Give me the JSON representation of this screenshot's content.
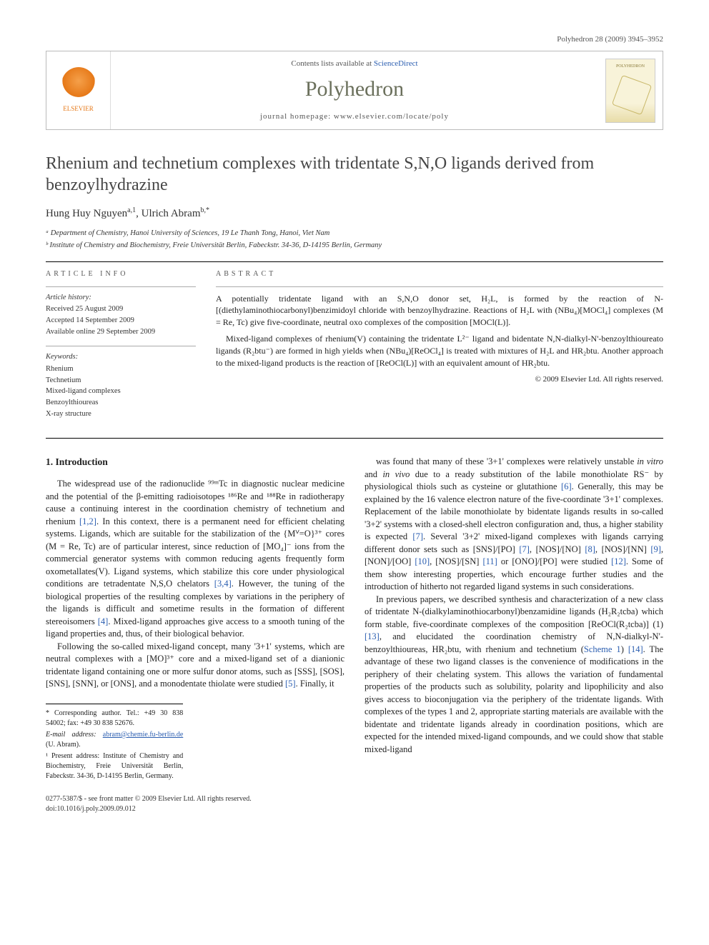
{
  "journal_ref": "Polyhedron 28 (2009) 3945–3952",
  "header": {
    "contents_prefix": "Contents lists available at ",
    "contents_link": "ScienceDirect",
    "journal_name": "Polyhedron",
    "homepage_prefix": "journal homepage: ",
    "homepage_url": "www.elsevier.com/locate/poly",
    "publisher_label": "ELSEVIER",
    "cover_label": "POLYHEDRON"
  },
  "title": "Rhenium and technetium complexes with tridentate S,N,O ligands derived from benzoylhydrazine",
  "authors_html": "Hung Huy Nguyen<sup>a,1</sup>, Ulrich Abram<sup>b,*</sup>",
  "affiliations": [
    "ᵃ Department of Chemistry, Hanoi University of Sciences, 19 Le Thanh Tong, Hanoi, Viet Nam",
    "ᵇ Institute of Chemistry and Biochemistry, Freie Universität Berlin, Fabeckstr. 34-36, D-14195 Berlin, Germany"
  ],
  "article_info": {
    "label": "ARTICLE INFO",
    "history_hdr": "Article history:",
    "history": [
      "Received 25 August 2009",
      "Accepted 14 September 2009",
      "Available online 29 September 2009"
    ],
    "keywords_hdr": "Keywords:",
    "keywords": [
      "Rhenium",
      "Technetium",
      "Mixed-ligand complexes",
      "Benzoylthioureas",
      "X-ray structure"
    ]
  },
  "abstract": {
    "label": "ABSTRACT",
    "p1": "A potentially tridentate ligand with an S,N,O donor set, H₂L, is formed by the reaction of N-[(diethylaminothiocarbonyl)benzimidoyl chloride with benzoylhydrazine. Reactions of H₂L with (NBu₄)[MOCl₄] complexes (M = Re, Tc) give five-coordinate, neutral oxo complexes of the composition [MOCl(L)].",
    "p2": "Mixed-ligand complexes of rhenium(V) containing the tridentate L²⁻ ligand and bidentate N,N-dialkyl-N'-benzoylthioureato ligands (R₂btu⁻) are formed in high yields when (NBu₄)[ReOCl₄] is treated with mixtures of H₂L and HR₂btu. Another approach to the mixed-ligand products is the reaction of [ReOCl(L)] with an equivalent amount of HR₂btu.",
    "copyright": "© 2009 Elsevier Ltd. All rights reserved."
  },
  "section1": {
    "heading": "1. Introduction",
    "p1": "The widespread use of the radionuclide ⁹⁹ᵐTc in diagnostic nuclear medicine and the potential of the β-emitting radioisotopes ¹⁸⁶Re and ¹⁸⁸Re in radiotherapy cause a continuing interest in the coordination chemistry of technetium and rhenium [1,2]. In this context, there is a permanent need for efficient chelating systems. Ligands, which are suitable for the stabilization of the {Mⱽ=O}³⁺ cores (M = Re, Tc) are of particular interest, since reduction of [MO₄]⁻ ions from the commercial generator systems with common reducing agents frequently form oxometallates(V). Ligand systems, which stabilize this core under physiological conditions are tetradentate N,S,O chelators [3,4]. However, the tuning of the biological properties of the resulting complexes by variations in the periphery of the ligands is difficult and sometime results in the formation of different stereoisomers [4]. Mixed-ligand approaches give access to a smooth tuning of the ligand properties and, thus, of their biological behavior.",
    "p2": "Following the so-called mixed-ligand concept, many '3+1' systems, which are neutral complexes with a [MO]³⁺ core and a mixed-ligand set of a dianionic tridentate ligand containing one or more sulfur donor atoms, such as [SSS], [SOS], [SNS], [SNN], or [ONS], and a monodentate thiolate were studied [5]. Finally, it",
    "p3": "was found that many of these '3+1' complexes were relatively unstable in vitro and in vivo due to a ready substitution of the labile monothiolate RS⁻ by physiological thiols such as cysteine or glutathione [6]. Generally, this may be explained by the 16 valence electron nature of the five-coordinate '3+1' complexes. Replacement of the labile monothiolate by bidentate ligands results in so-called '3+2' systems with a closed-shell electron configuration and, thus, a higher stability is expected [7]. Several '3+2' mixed-ligand complexes with ligands carrying different donor sets such as [SNS]/[PO] [7], [NOS]/[NO] [8], [NOS]/[NN] [9], [NON]/[OO] [10], [NOS]/[SN] [11] or [ONO]/[PO] were studied [12]. Some of them show interesting properties, which encourage further studies and the introduction of hitherto not regarded ligand systems in such considerations.",
    "p4": "In previous papers, we described synthesis and characterization of a new class of tridentate N-(dialkylaminothiocarbonyl)benzamidine ligands (H₂R₂tcba) which form stable, five-coordinate complexes of the composition [ReOCl(R₂tcba)] (1) [13], and elucidated the coordination chemistry of N,N-dialkyl-N'-benzoylthioureas, HR₂btu, with rhenium and technetium (Scheme 1) [14]. The advantage of these two ligand classes is the convenience of modifications in the periphery of their chelating system. This allows the variation of fundamental properties of the products such as solubility, polarity and lipophilicity and also gives access to bioconjugation via the periphery of the tridentate ligands. With complexes of the types 1 and 2, appropriate starting materials are available with the bidentate and tridentate ligands already in coordination positions, which are expected for the intended mixed-ligand compounds, and we could show that stable mixed-ligand"
  },
  "footnotes": {
    "corr": "* Corresponding author. Tel.: +49 30 838 54002; fax: +49 30 838 52676.",
    "email_label": "E-mail address: ",
    "email": "abram@chemie.fu-berlin.de",
    "email_suffix": " (U. Abram).",
    "present": "¹ Present address: Institute of Chemistry and Biochemistry, Freie Universität Berlin, Fabeckstr. 34-36, D-14195 Berlin, Germany."
  },
  "footer": {
    "left1": "0277-5387/$ - see front matter © 2009 Elsevier Ltd. All rights reserved.",
    "left2": "doi:10.1016/j.poly.2009.09.012"
  },
  "refs": {
    "r12": "[1,2]",
    "r34": "[3,4]",
    "r4": "[4]",
    "r5": "[5]",
    "r6": "[6]",
    "r7a": "[7]",
    "r7b": "[7]",
    "r8": "[8]",
    "r9": "[9]",
    "r10": "[10]",
    "r11": "[11]",
    "r12b": "[12]",
    "r13": "[13]",
    "r14": "[14]",
    "scheme1": "Scheme 1"
  }
}
